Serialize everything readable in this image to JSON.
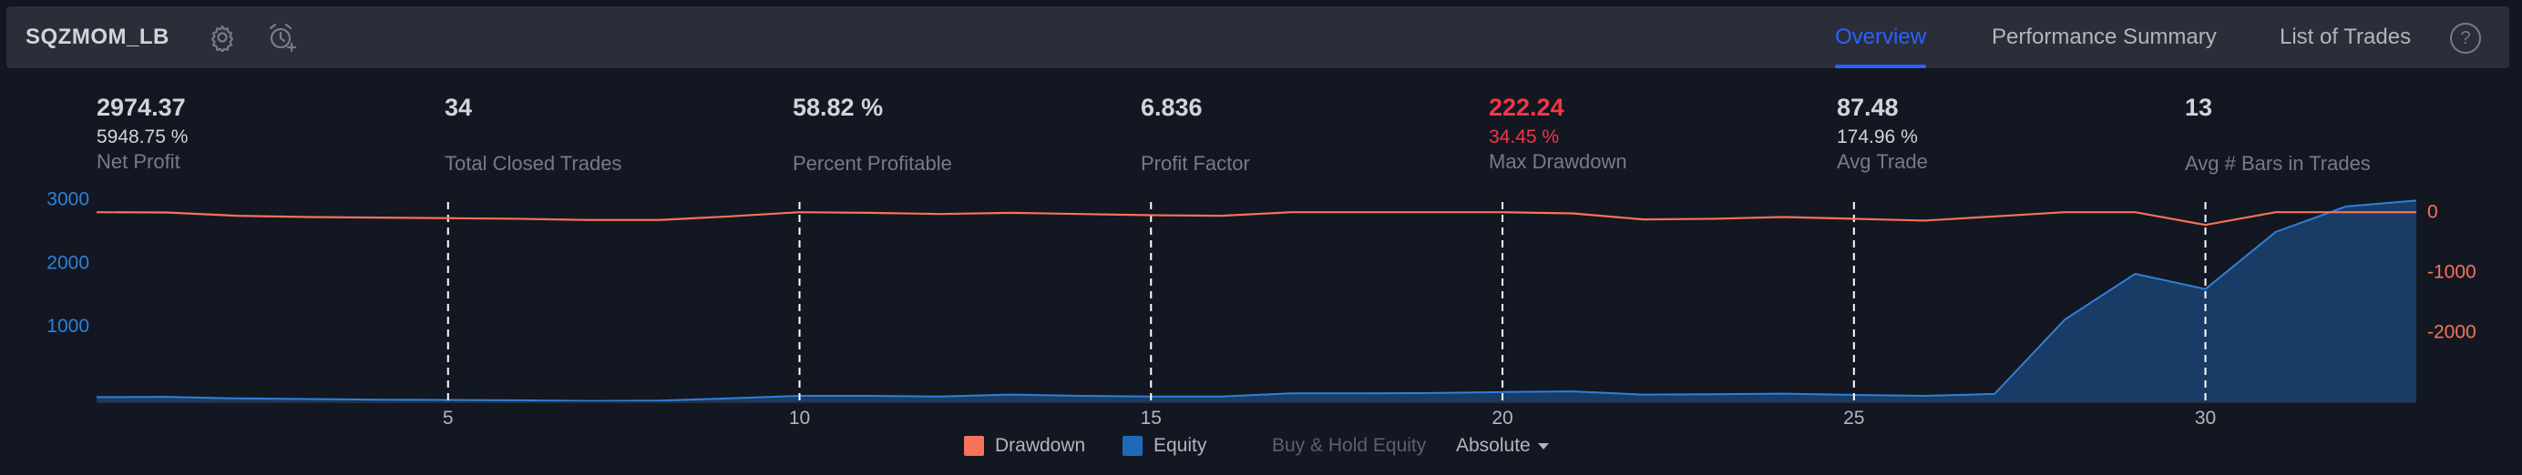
{
  "header": {
    "strategy_name": "SQZMOM_LB",
    "icons": [
      "gear-icon",
      "alarm-clock-plus-icon"
    ],
    "tabs": [
      {
        "label": "Overview",
        "active": true
      },
      {
        "label": "Performance Summary",
        "active": false
      },
      {
        "label": "List of Trades",
        "active": false
      }
    ],
    "help_label": "?"
  },
  "metrics": [
    {
      "value": "2974.37",
      "sub": "5948.75 %",
      "label": "Net Profit"
    },
    {
      "value": "34",
      "sub": "",
      "label": "Total Closed Trades"
    },
    {
      "value": "58.82 %",
      "sub": "",
      "label": "Percent Profitable"
    },
    {
      "value": "6.836",
      "sub": "",
      "label": "Profit Factor"
    },
    {
      "value": "222.24",
      "sub": "34.45 %",
      "label": "Max Drawdown"
    },
    {
      "value": "87.48",
      "sub": "174.96 %",
      "label": "Avg Trade"
    },
    {
      "value": "13",
      "sub": "",
      "label": "Avg # Bars in Trades"
    }
  ],
  "legend": {
    "drawdown": "Drawdown",
    "equity": "Equity",
    "buy_hold": "Buy & Hold Equity",
    "mode": "Absolute"
  },
  "colors": {
    "accent": "#2962ff",
    "drawdown": "#f7725b",
    "equity": "#1f6ab8",
    "negative": "#f23645"
  },
  "chart_data": {
    "type": "area",
    "x_ticks": [
      5,
      10,
      15,
      20,
      25,
      30
    ],
    "xlim": [
      0,
      33
    ],
    "left_axis": {
      "ticks": [
        "1000",
        "2000",
        "3000"
      ],
      "ylim": [
        -200,
        2950
      ]
    },
    "right_axis": {
      "ticks": [
        "0",
        "-1000",
        "-2000"
      ],
      "ylim": [
        -3180,
        160
      ]
    },
    "series": [
      {
        "name": "Equity",
        "x": [
          0,
          1,
          2,
          3,
          4,
          5,
          6,
          7,
          8,
          9,
          10,
          11,
          12,
          13,
          14,
          15,
          16,
          17,
          18,
          19,
          20,
          21,
          22,
          23,
          24,
          25,
          26,
          27,
          28,
          29,
          30,
          31,
          32,
          33
        ],
        "values": [
          -120,
          -115,
          -140,
          -150,
          -160,
          -165,
          -170,
          -180,
          -175,
          -140,
          -100,
          -100,
          -110,
          -80,
          -100,
          -110,
          -110,
          -60,
          -60,
          -55,
          -40,
          -30,
          -80,
          -75,
          -65,
          -85,
          -100,
          -70,
          1100,
          1820,
          1580,
          2480,
          2880,
          2974
        ]
      },
      {
        "name": "Drawdown",
        "x": [
          0,
          1,
          2,
          3,
          4,
          5,
          6,
          7,
          8,
          9,
          10,
          11,
          12,
          13,
          14,
          15,
          16,
          17,
          18,
          19,
          20,
          21,
          22,
          23,
          24,
          25,
          26,
          27,
          28,
          29,
          30,
          31,
          32,
          33
        ],
        "values": [
          -10,
          -15,
          -70,
          -90,
          -100,
          -110,
          -120,
          -140,
          -140,
          -80,
          -10,
          -20,
          -40,
          -20,
          -40,
          -60,
          -70,
          -10,
          -10,
          -10,
          -10,
          -30,
          -130,
          -120,
          -90,
          -120,
          -150,
          -80,
          -10,
          -10,
          -222,
          -10,
          -10,
          -10
        ]
      }
    ],
    "grid": "dashed vertical lines at x ticks",
    "legend_placement": "bottom-center"
  }
}
